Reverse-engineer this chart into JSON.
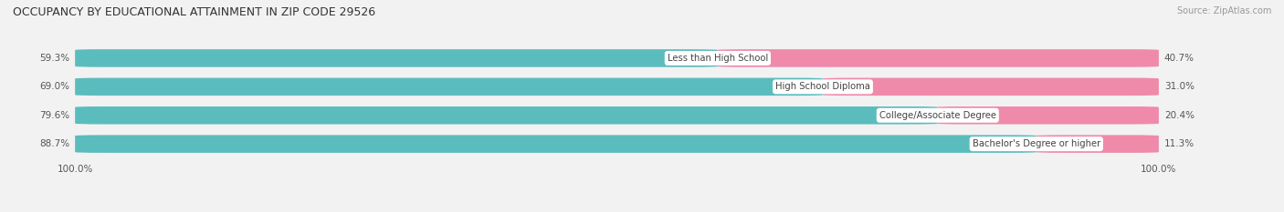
{
  "title": "OCCUPANCY BY EDUCATIONAL ATTAINMENT IN ZIP CODE 29526",
  "source": "Source: ZipAtlas.com",
  "categories": [
    "Less than High School",
    "High School Diploma",
    "College/Associate Degree",
    "Bachelor's Degree or higher"
  ],
  "owner_pct": [
    59.3,
    69.0,
    79.6,
    88.7
  ],
  "renter_pct": [
    40.7,
    31.0,
    20.4,
    11.3
  ],
  "owner_color": "#5bbcbd",
  "renter_color": "#f08aaa",
  "bg_color": "#f2f2f2",
  "bar_bg_color": "#e2e2e4",
  "row_bg_color": "#e8e8ea",
  "text_color": "#555555",
  "axis_label_left": "100.0%",
  "axis_label_right": "100.0%",
  "bar_height": 0.62,
  "figsize": [
    14.06,
    2.33
  ],
  "dpi": 100
}
